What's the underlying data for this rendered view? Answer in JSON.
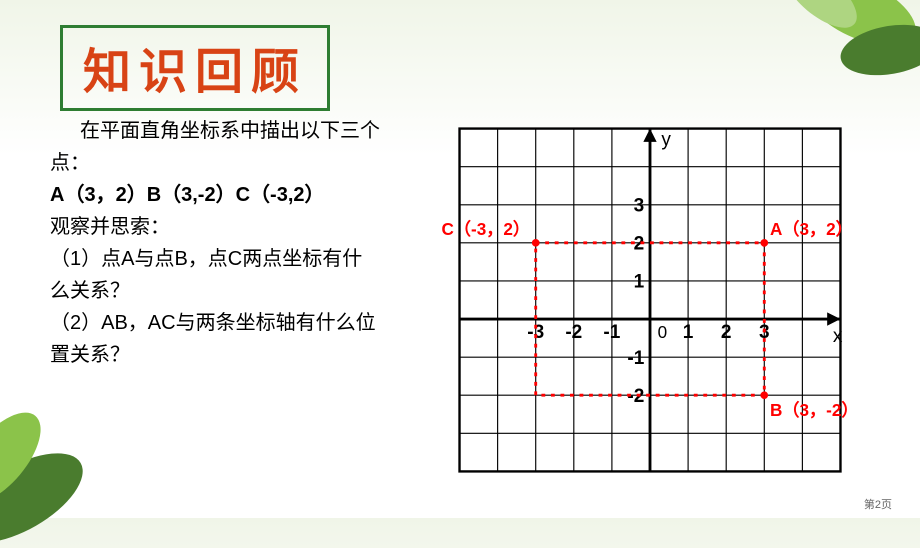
{
  "heading": "知识回顾",
  "content": {
    "intro": "在平面直角坐标系中描出以下三个点：",
    "points_line": "A（3，2）B（3,-2）C（-3,2）",
    "observe": "观察并思索：",
    "q1": "（1）点A与点B，点C两点坐标有什么关系？",
    "q2": "（2）AB，AC与两条坐标轴有什么位置关系？"
  },
  "graph": {
    "grid_color": "#000000",
    "axis_color": "#000000",
    "label_color": "#ff0000",
    "text_color": "#000000",
    "bg_color": "#ffffff",
    "cell": 40,
    "x_range": [
      -5,
      5
    ],
    "y_range": [
      -4,
      5
    ],
    "x_ticks": [
      -3,
      -2,
      -1,
      1,
      2,
      3
    ],
    "y_ticks": [
      -2,
      -1,
      1,
      2,
      3
    ],
    "origin_label": "0",
    "axis_labels": {
      "x": "x",
      "y": "y"
    },
    "points": {
      "A": {
        "x": 3,
        "y": 2,
        "label": "A（3，2）"
      },
      "B": {
        "x": 3,
        "y": -2,
        "label": "B（3，-2）"
      },
      "C": {
        "x": -3,
        "y": 2,
        "label": "C（-3，2）"
      }
    },
    "dashed_segments": [
      {
        "from": "C",
        "to": "A"
      },
      {
        "from": "A",
        "to": "B"
      },
      {
        "from": "B",
        "to": [
          -3,
          -2
        ]
      },
      {
        "from": [
          -3,
          -2
        ],
        "to": "C"
      }
    ]
  },
  "decoration": {
    "leaf_green_dark": "#4a7c2e",
    "leaf_green_light": "#8bc34a",
    "heading_border": "#2e7d32",
    "heading_text": "#d84315"
  },
  "page_num": "第2页"
}
